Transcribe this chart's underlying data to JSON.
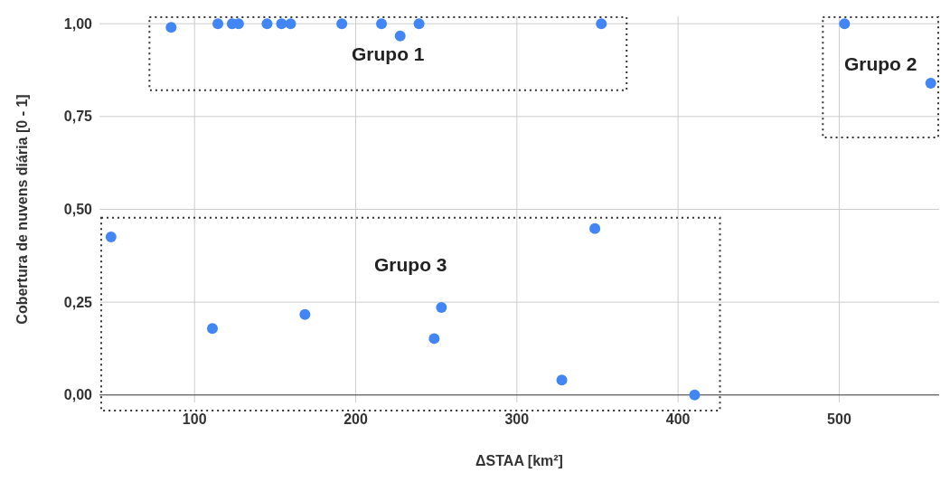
{
  "chart_data": {
    "type": "scatter",
    "xlabel": "ΔSTAA [km²]",
    "ylabel": "Cobertura de nuvens diária [0 - 1]",
    "series": [
      {
        "color": "#4285f4",
        "x": [
          85.5,
          114.5,
          123.4,
          127.3,
          145,
          154,
          159.6,
          191.4,
          216,
          227.6,
          239.3,
          352.4
        ],
        "values": [
          0.99,
          1.0,
          1.0,
          1.0,
          1.0,
          1.0,
          1.0,
          1.0,
          1.0,
          0.967,
          1.0,
          1.0
        ]
      },
      {
        "color": "#4285f4",
        "x": [
          503.3,
          556.8
        ],
        "values": [
          1.0,
          0.84
        ]
      },
      {
        "color": "#4285f4",
        "x": [
          48.2,
          111.1,
          168.5,
          253.2,
          248.7,
          327.9,
          348.4,
          410.3
        ],
        "values": [
          0.426,
          0.179,
          0.217,
          0.236,
          0.152,
          0.04,
          0.448,
          0.0
        ]
      }
    ],
    "annotations": [
      "Grupo 1",
      "Grupo 2",
      "Grupo 3"
    ],
    "xlim": [
      41,
      562
    ],
    "xticks": [
      100,
      200,
      300,
      400,
      500
    ],
    "ylim": [
      -0.02,
      1.02
    ],
    "yticks": [
      {
        "value": 0,
        "label": "0,00"
      },
      {
        "value": 0.25,
        "label": "0,25"
      },
      {
        "value": 0.5,
        "label": "0,50"
      },
      {
        "value": 0.75,
        "label": "0,75"
      },
      {
        "value": 1,
        "label": "1,00"
      }
    ],
    "grid": true,
    "marker": "circle"
  }
}
